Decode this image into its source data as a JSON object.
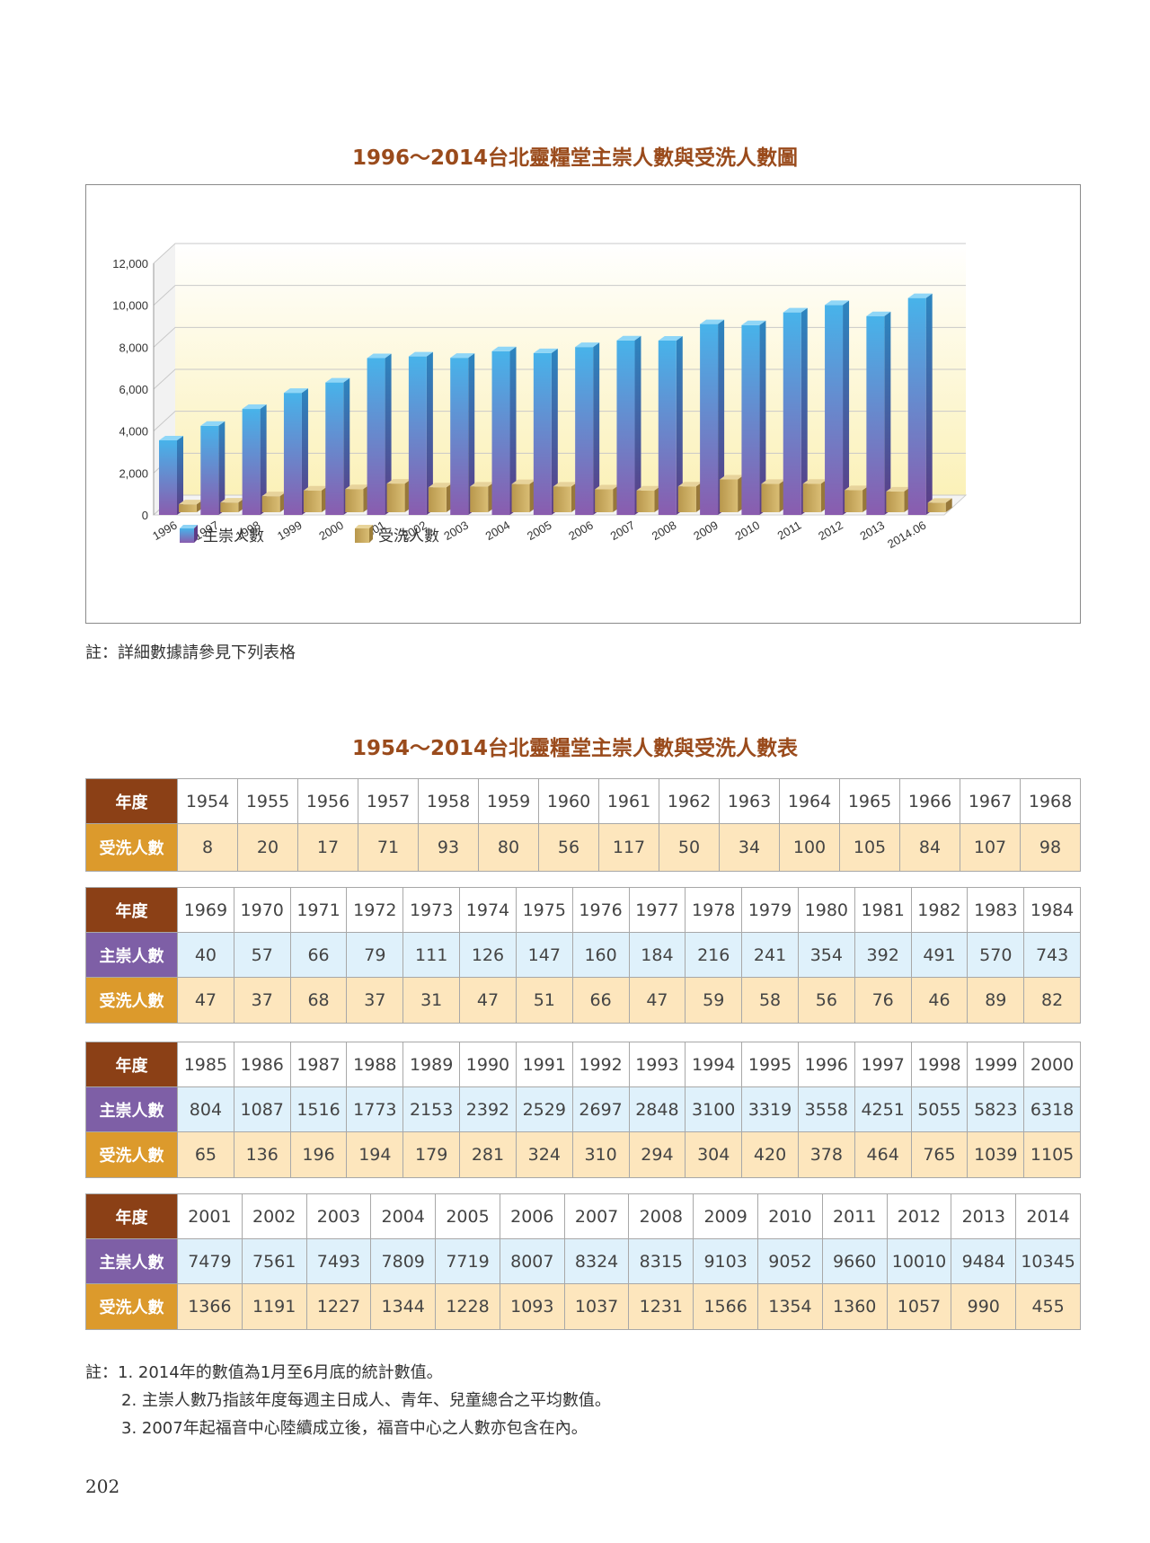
{
  "chart_title": "1996～2014台北靈糧堂主崇人數與受洗人數圖",
  "chart_data": {
    "type": "bar",
    "categories": [
      "1996",
      "1997",
      "1998",
      "1999",
      "2000",
      "2001",
      "2002",
      "2003",
      "2004",
      "2005",
      "2006",
      "2007",
      "2008",
      "2009",
      "2010",
      "2011",
      "2012",
      "2013",
      "2014.06"
    ],
    "series": [
      {
        "name": "主崇人數",
        "values": [
          3558,
          4251,
          5055,
          5823,
          6318,
          7479,
          7561,
          7493,
          7809,
          7719,
          8007,
          8324,
          8315,
          9103,
          9052,
          9660,
          10010,
          9484,
          10345
        ]
      },
      {
        "name": "受洗人數",
        "values": [
          378,
          464,
          765,
          1039,
          1105,
          1366,
          1191,
          1227,
          1344,
          1228,
          1093,
          1037,
          1231,
          1566,
          1354,
          1360,
          1057,
          990,
          455
        ]
      }
    ],
    "ylim": [
      0,
      12000
    ],
    "yticks": [
      "0",
      "2,000",
      "4,000",
      "6,000",
      "8,000",
      "10,000",
      "12,000"
    ],
    "legend_position": "bottom-left",
    "colors": {
      "worship": "#4aaee6",
      "worship_base": "#8a5db0",
      "baptism": "#c9a85b"
    }
  },
  "chart_note": "註：詳細數據請參見下列表格",
  "table_title": "1954～2014台北靈糧堂主崇人數與受洗人數表",
  "row_labels": {
    "year": "年度",
    "worship": "主崇人數",
    "baptism": "受洗人數"
  },
  "tables": [
    {
      "years": [
        "1954",
        "1955",
        "1956",
        "1957",
        "1958",
        "1959",
        "1960",
        "1961",
        "1962",
        "1963",
        "1964",
        "1965",
        "1966",
        "1967",
        "1968"
      ],
      "baptism": [
        "8",
        "20",
        "17",
        "71",
        "93",
        "80",
        "56",
        "117",
        "50",
        "34",
        "100",
        "105",
        "84",
        "107",
        "98"
      ]
    },
    {
      "years": [
        "1969",
        "1970",
        "1971",
        "1972",
        "1973",
        "1974",
        "1975",
        "1976",
        "1977",
        "1978",
        "1979",
        "1980",
        "1981",
        "1982",
        "1983",
        "1984"
      ],
      "worship": [
        "40",
        "57",
        "66",
        "79",
        "111",
        "126",
        "147",
        "160",
        "184",
        "216",
        "241",
        "354",
        "392",
        "491",
        "570",
        "743"
      ],
      "baptism": [
        "47",
        "37",
        "68",
        "37",
        "31",
        "47",
        "51",
        "66",
        "47",
        "59",
        "58",
        "56",
        "76",
        "46",
        "89",
        "82"
      ]
    },
    {
      "years": [
        "1985",
        "1986",
        "1987",
        "1988",
        "1989",
        "1990",
        "1991",
        "1992",
        "1993",
        "1994",
        "1995",
        "1996",
        "1997",
        "1998",
        "1999",
        "2000"
      ],
      "worship": [
        "804",
        "1087",
        "1516",
        "1773",
        "2153",
        "2392",
        "2529",
        "2697",
        "2848",
        "3100",
        "3319",
        "3558",
        "4251",
        "5055",
        "5823",
        "6318"
      ],
      "baptism": [
        "65",
        "136",
        "196",
        "194",
        "179",
        "281",
        "324",
        "310",
        "294",
        "304",
        "420",
        "378",
        "464",
        "765",
        "1039",
        "1105"
      ]
    },
    {
      "years": [
        "2001",
        "2002",
        "2003",
        "2004",
        "2005",
        "2006",
        "2007",
        "2008",
        "2009",
        "2010",
        "2011",
        "2012",
        "2013",
        "2014"
      ],
      "worship": [
        "7479",
        "7561",
        "7493",
        "7809",
        "7719",
        "8007",
        "8324",
        "8315",
        "9103",
        "9052",
        "9660",
        "10010",
        "9484",
        "10345"
      ],
      "baptism": [
        "1366",
        "1191",
        "1227",
        "1344",
        "1228",
        "1093",
        "1037",
        "1231",
        "1566",
        "1354",
        "1360",
        "1057",
        "990",
        "455"
      ]
    }
  ],
  "footnotes": {
    "prefix": "註：",
    "items": [
      "1. 2014年的數值為1月至6月底的統計數值。",
      "2. 主崇人數乃指該年度每週主日成人、青年、兒童總合之平均數值。",
      "3. 2007年起福音中心陸續成立後，福音中心之人數亦包含在內。"
    ]
  },
  "page_number": "202"
}
